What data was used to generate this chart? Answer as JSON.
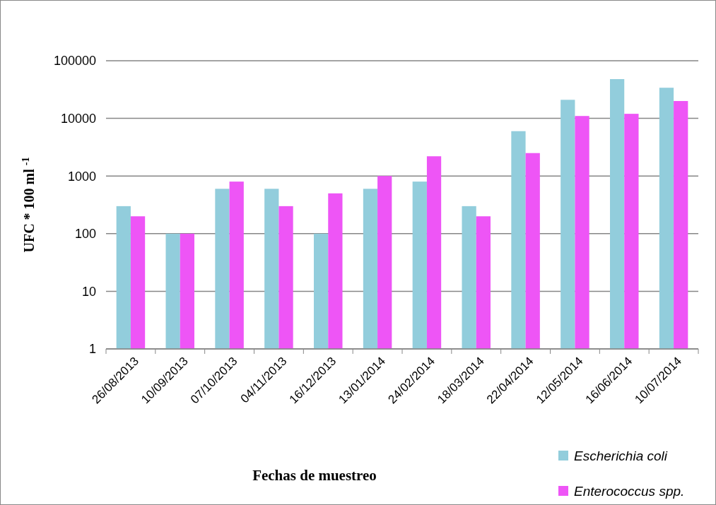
{
  "chart_data": {
    "type": "bar",
    "xlabel": "Fechas de muestreo",
    "ylabel": "UFC * 100 ml $^{-1}$",
    "categories": [
      "26/08/2013",
      "10/09/2013",
      "07/10/2013",
      "04/11/2013",
      "16/12/2013",
      "13/01/2014",
      "24/02/2014",
      "18/03/2014",
      "22/04/2014",
      "12/05/2014",
      "16/06/2014",
      "10/07/2014"
    ],
    "series": [
      {
        "name": "Escherichia coli",
        "color": "#92cddc",
        "values": [
          300,
          100,
          600,
          600,
          100,
          600,
          800,
          300,
          6000,
          21000,
          48000,
          34000
        ]
      },
      {
        "name": "Enterococcus spp.",
        "color": "#ee55f6",
        "values": [
          200,
          100,
          800,
          300,
          500,
          1000,
          2200,
          200,
          2500,
          11000,
          12000,
          20000
        ]
      }
    ],
    "log": true,
    "ylim": [
      1,
      100000
    ],
    "yticks": [
      1,
      10,
      100,
      1000,
      10000,
      100000
    ],
    "grid": "y",
    "legend": "bottom right"
  }
}
